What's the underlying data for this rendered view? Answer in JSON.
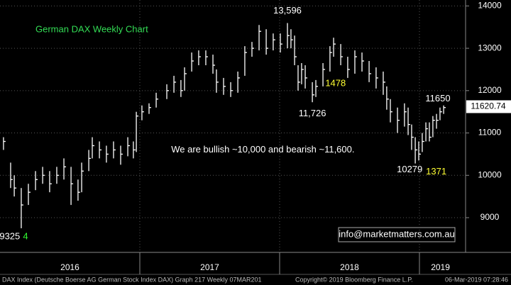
{
  "chart_data": {
    "type": "ohlc",
    "title": "German DAX Weekly Chart",
    "x": [
      2016.025,
      2016.076,
      2016.102,
      2016.152,
      2016.203,
      2016.254,
      2016.305,
      2016.355,
      2016.406,
      2016.457,
      2016.508,
      2016.558,
      2016.584,
      2016.635,
      2016.66,
      2016.711,
      2016.761,
      2016.812,
      2016.863,
      2016.914,
      2016.954,
      2016.975,
      2017.015,
      2017.066,
      2017.117,
      2017.193,
      2017.244,
      2017.294,
      2017.32,
      2017.371,
      2017.421,
      2017.472,
      2017.523,
      2017.548,
      2017.599,
      2017.65,
      2017.701,
      2017.751,
      2017.802,
      2017.853,
      2017.904,
      2017.954,
      2018.005,
      2018.056,
      2018.081,
      2018.107,
      2018.132,
      2018.157,
      2018.183,
      2018.234,
      2018.259,
      2018.31,
      2018.36,
      2018.386,
      2018.437,
      2018.487,
      2018.538,
      2018.589,
      2018.64,
      2018.69,
      2018.741,
      2018.766,
      2018.792,
      2018.843,
      2018.893,
      2018.919,
      2018.944,
      2018.97,
      2018.995,
      2019.02,
      2019.046,
      2019.071,
      2019.096,
      2019.122,
      2019.147,
      2019.173
    ],
    "high": [
      10900,
      10300,
      10000,
      9700,
      9800,
      10100,
      10200,
      10100,
      10200,
      10400,
      10200,
      9900,
      10300,
      10600,
      10900,
      10800,
      10700,
      10800,
      10700,
      10900,
      10800,
      11500,
      11650,
      11700,
      11950,
      12150,
      12350,
      12250,
      12550,
      12900,
      12950,
      12950,
      12850,
      12500,
      12300,
      12200,
      12450,
      13050,
      13150,
      13550,
      13450,
      13350,
      13350,
      13596,
      13450,
      13300,
      12600,
      12650,
      12600,
      12200,
      12250,
      12650,
      13050,
      13250,
      13100,
      12800,
      12950,
      12900,
      12700,
      12550,
      12450,
      12100,
      11800,
      11600,
      11700,
      11600,
      11200,
      10900,
      10800,
      11000,
      11250,
      11250,
      11400,
      11450,
      11600,
      11650
    ],
    "low": [
      10600,
      9700,
      9500,
      8750,
      9300,
      9650,
      9800,
      9600,
      9800,
      9900,
      9300,
      9400,
      9600,
      10100,
      10400,
      10400,
      10300,
      10400,
      10250,
      10450,
      10400,
      10550,
      11300,
      11450,
      11600,
      11800,
      11950,
      11850,
      12000,
      12450,
      12600,
      12600,
      12400,
      11950,
      11900,
      11850,
      11950,
      12350,
      12800,
      12950,
      12850,
      12950,
      12900,
      13000,
      13000,
      12600,
      12000,
      12150,
      12050,
      11726,
      11850,
      12100,
      12450,
      12800,
      12600,
      12300,
      12400,
      12450,
      12200,
      12050,
      11900,
      11550,
      11250,
      11000,
      11150,
      10950,
      10600,
      10279,
      10350,
      10550,
      10800,
      10800,
      10900,
      11100,
      11300,
      11450
    ],
    "close": [
      10800,
      9900,
      9700,
      9300,
      9600,
      9900,
      10000,
      9800,
      10000,
      10200,
      9800,
      9600,
      10100,
      10400,
      10700,
      10600,
      10500,
      10600,
      10500,
      10700,
      10600,
      11400,
      11500,
      11600,
      11800,
      12000,
      12200,
      12000,
      12400,
      12700,
      12800,
      12800,
      12600,
      12200,
      12100,
      12000,
      12300,
      12900,
      13000,
      13400,
      13000,
      13200,
      13100,
      13300,
      13200,
      12800,
      12200,
      12500,
      12300,
      11900,
      12100,
      12500,
      12900,
      13100,
      12800,
      12500,
      12800,
      12700,
      12400,
      12300,
      12200,
      11800,
      11500,
      11300,
      11500,
      11200,
      10900,
      10600,
      10500,
      10800,
      11100,
      10900,
      11300,
      11300,
      11500,
      11600
    ],
    "color": "#ffffff",
    "xlim": [
      2016.0,
      2019.33
    ],
    "xticks": [
      {
        "value": 2016.5,
        "label": "2016"
      },
      {
        "value": 2017.5,
        "label": "2017"
      },
      {
        "value": 2018.5,
        "label": "2018"
      },
      {
        "value": 2019.15,
        "label": "2019"
      }
    ],
    "year_starts": [
      2017,
      2018,
      2019
    ],
    "ylim": [
      8180,
      14140
    ],
    "yticks": [
      9000,
      10000,
      11000,
      12000,
      13000,
      14000
    ],
    "grid": true,
    "last_price": 11620.74,
    "annotations": [
      {
        "text": "13,596",
        "x": 2018.056,
        "y": 13880,
        "color": "#ffffff"
      },
      {
        "text": "1478",
        "x": 2018.4,
        "y": 12160,
        "color": "#ffff33"
      },
      {
        "text": "11,726",
        "x": 2018.234,
        "y": 11450,
        "color": "#ffffff"
      },
      {
        "text": "11650",
        "x": 2019.132,
        "y": 11800,
        "color": "#ffffff"
      },
      {
        "text": "We are bullish ~10,000 and bearish ~11,600.",
        "x": 2017.88,
        "y": 10600,
        "color": "#ffffff"
      },
      {
        "text": "10279",
        "x": 2018.93,
        "y": 10130,
        "color": "#ffffff"
      },
      {
        "text": "1371",
        "x": 2019.12,
        "y": 10080,
        "color": "#ffff33"
      },
      {
        "text": "9325",
        "x": 2016.07,
        "y": 8550,
        "color": "#ffffff"
      },
      {
        "text": "4",
        "x": 2016.183,
        "y": 8550,
        "color": "#33ff33"
      }
    ],
    "watermark": "info@marketmatters.com.au",
    "footer": [
      "DAX Index (Deutsche Boerse AG German Stock Index DAX) Graph 217  Weekly 07MAR201",
      "Copyright© 2019 Bloomberg Finance L.P.",
      "06-Mar-2019 07:28:46"
    ]
  }
}
